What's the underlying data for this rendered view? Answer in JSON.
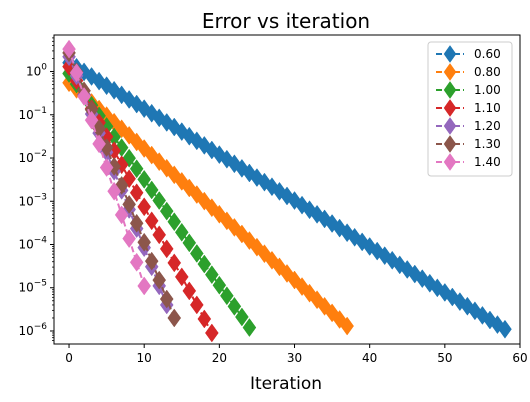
{
  "chart_data": {
    "type": "line",
    "title": "Error vs iteration",
    "xlabel": "Iteration",
    "ylabel": "",
    "xlim": [
      -2,
      60
    ],
    "ylim": [
      5e-07,
      7
    ],
    "yscale": "log",
    "x_ticks": [
      0,
      10,
      20,
      30,
      40,
      50,
      60
    ],
    "y_ticks": [
      {
        "value": 1,
        "label_base": "10",
        "label_exp": "0"
      },
      {
        "value": 0.1,
        "label_base": "10",
        "label_exp": "−1"
      },
      {
        "value": 0.01,
        "label_base": "10",
        "label_exp": "−2"
      },
      {
        "value": 0.001,
        "label_base": "10",
        "label_exp": "−3"
      },
      {
        "value": 0.0001,
        "label_base": "10",
        "label_exp": "−4"
      },
      {
        "value": 1e-05,
        "label_base": "10",
        "label_exp": "−5"
      },
      {
        "value": 1e-06,
        "label_base": "10",
        "label_exp": "−6"
      }
    ],
    "grid": false,
    "legend_position": "top-right",
    "marker": "diamond",
    "line_style": "dashed",
    "series": [
      {
        "name": "0.60",
        "color": "#1f77b4",
        "start": 1.6,
        "last_iter": 58,
        "last_value": 1.1e-06
      },
      {
        "name": "0.80",
        "color": "#ff7f0e",
        "start": 0.55,
        "last_iter": 37,
        "last_value": 1.3e-06
      },
      {
        "name": "1.00",
        "color": "#2ca02c",
        "start": 0.9,
        "last_iter": 24,
        "last_value": 1.2e-06
      },
      {
        "name": "1.10",
        "color": "#d62728",
        "start": 1.3,
        "last_iter": 19,
        "last_value": 9e-07
      },
      {
        "name": "1.20",
        "color": "#9467bd",
        "start": 2.2,
        "last_iter": 13,
        "last_value": 4e-06
      },
      {
        "name": "1.30",
        "color": "#8c564b",
        "start": 2.7,
        "last_iter": 14,
        "last_value": 2e-06
      },
      {
        "name": "1.40",
        "color": "#e377c2",
        "start": 3.3,
        "last_iter": 10,
        "last_value": 1.1e-05
      }
    ]
  }
}
